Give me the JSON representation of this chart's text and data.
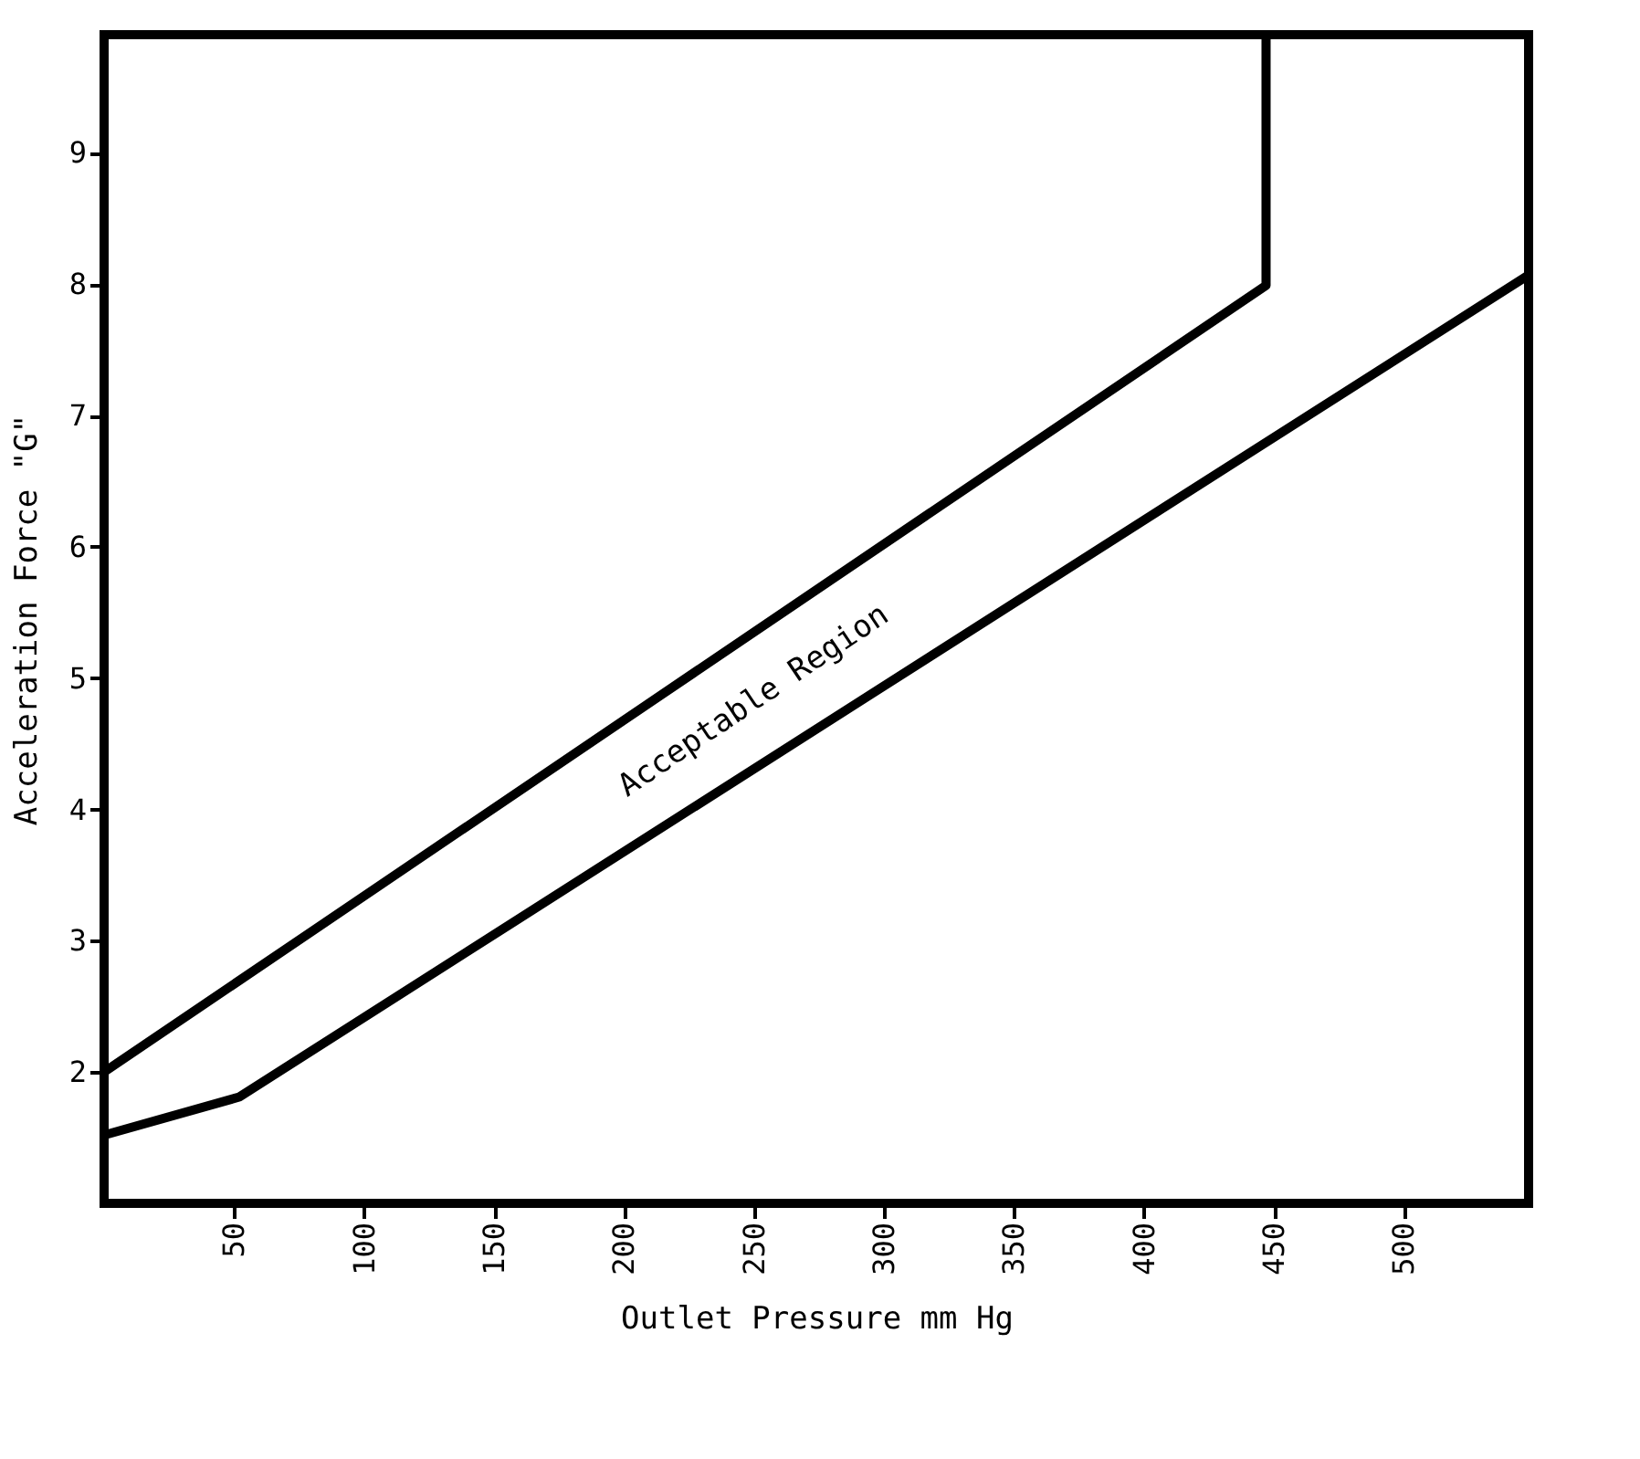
{
  "chart_data": {
    "type": "line",
    "xlabel": "Outlet Pressure mm Hg",
    "ylabel": "Acceleration Force \"G\"",
    "xlim": [
      0,
      548
    ],
    "ylim": [
      1.0,
      9.9
    ],
    "xticks": [
      50,
      100,
      150,
      200,
      250,
      300,
      350,
      400,
      450,
      500
    ],
    "yticks": [
      2,
      3,
      4,
      5,
      6,
      7,
      8,
      9
    ],
    "grid": false,
    "legend": false,
    "marker": "none",
    "line_style": "solid",
    "series": [
      {
        "color": "#000000",
        "x": [
          0,
          447,
          447
        ],
        "values": [
          2.0,
          7.99,
          9.9
        ]
      },
      {
        "color": "#000000",
        "x": [
          0,
          52,
          548
        ],
        "values": [
          1.52,
          1.81,
          8.07
        ]
      }
    ],
    "annotations": [
      "Acceptable Region"
    ]
  }
}
